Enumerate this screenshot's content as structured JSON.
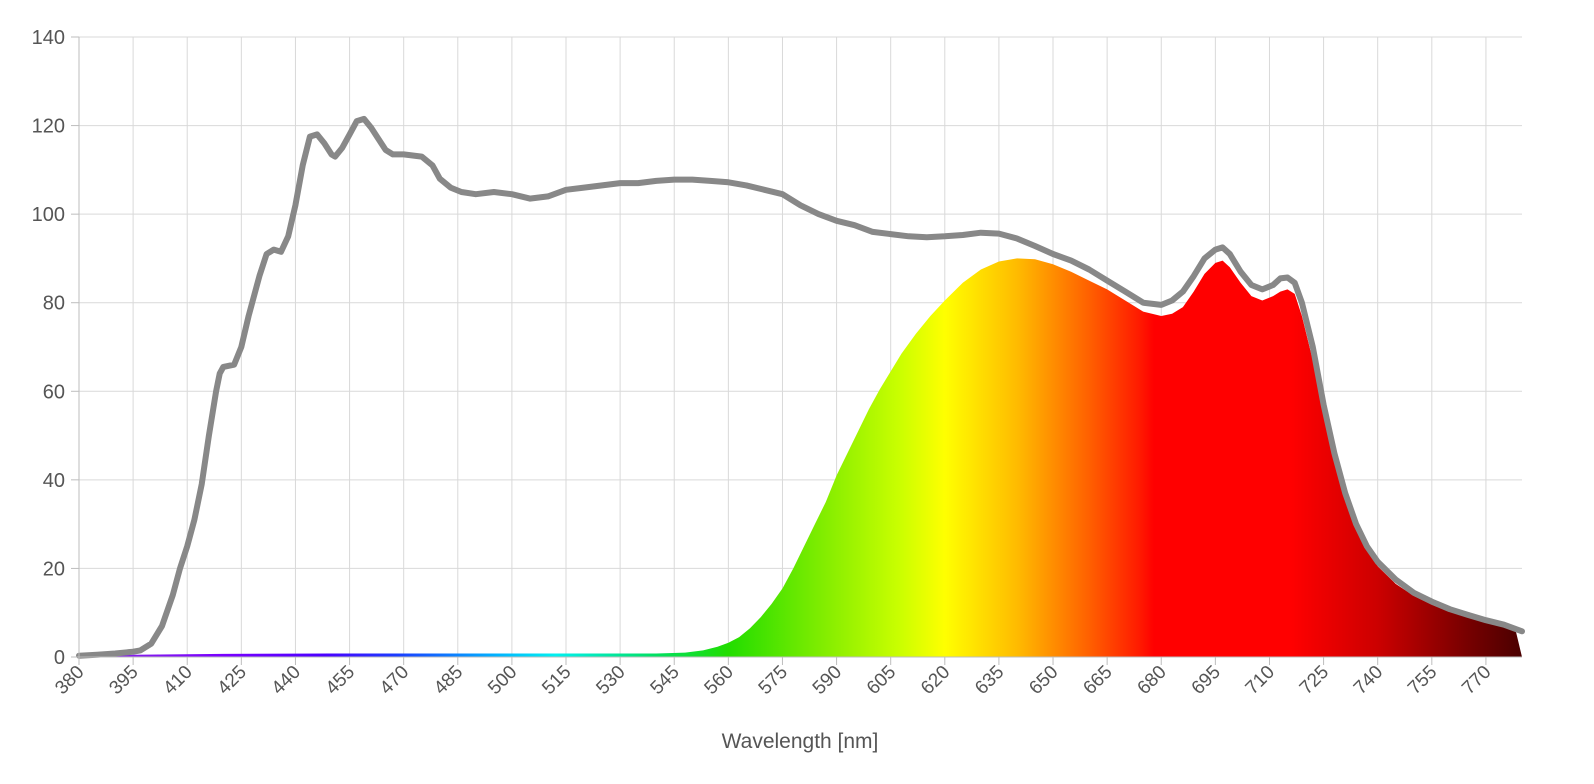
{
  "chart_data": {
    "type": "area",
    "xlabel": "Wavelength [nm]",
    "ylabel": "",
    "xlim": [
      380,
      780
    ],
    "ylim": [
      0,
      140
    ],
    "grid": true,
    "legend": "none",
    "x_ticks": [
      380,
      395,
      410,
      425,
      440,
      455,
      470,
      485,
      500,
      515,
      530,
      545,
      560,
      575,
      590,
      605,
      620,
      635,
      650,
      665,
      680,
      695,
      710,
      725,
      740,
      755,
      770
    ],
    "y_ticks": [
      0,
      20,
      40,
      60,
      80,
      100,
      120,
      140
    ],
    "series": [
      {
        "style": "line",
        "color": "#888888",
        "points": [
          [
            380,
            0.3
          ],
          [
            385,
            0.5
          ],
          [
            390,
            0.8
          ],
          [
            395,
            1.2
          ],
          [
            397,
            1.5
          ],
          [
            400,
            3
          ],
          [
            403,
            7
          ],
          [
            406,
            14
          ],
          [
            408,
            20
          ],
          [
            410,
            25
          ],
          [
            412,
            31
          ],
          [
            414,
            39
          ],
          [
            416,
            50
          ],
          [
            418,
            60
          ],
          [
            419,
            64
          ],
          [
            420,
            65.5
          ],
          [
            423,
            66
          ],
          [
            425,
            70
          ],
          [
            427,
            77
          ],
          [
            430,
            86
          ],
          [
            432,
            91
          ],
          [
            434,
            92
          ],
          [
            436,
            91.5
          ],
          [
            438,
            95
          ],
          [
            440,
            102
          ],
          [
            442,
            111
          ],
          [
            444,
            117.5
          ],
          [
            446,
            118
          ],
          [
            448,
            116
          ],
          [
            450,
            113.5
          ],
          [
            451,
            113
          ],
          [
            453,
            115
          ],
          [
            455,
            118
          ],
          [
            457,
            121
          ],
          [
            459,
            121.5
          ],
          [
            461,
            119.5
          ],
          [
            463,
            117
          ],
          [
            465,
            114.5
          ],
          [
            467,
            113.5
          ],
          [
            470,
            113.5
          ],
          [
            475,
            113
          ],
          [
            478,
            111
          ],
          [
            480,
            108
          ],
          [
            483,
            106
          ],
          [
            486,
            105
          ],
          [
            490,
            104.5
          ],
          [
            495,
            105
          ],
          [
            500,
            104.5
          ],
          [
            505,
            103.5
          ],
          [
            510,
            104
          ],
          [
            515,
            105.5
          ],
          [
            520,
            106
          ],
          [
            525,
            106.5
          ],
          [
            530,
            107
          ],
          [
            535,
            107
          ],
          [
            540,
            107.5
          ],
          [
            545,
            107.8
          ],
          [
            550,
            107.8
          ],
          [
            555,
            107.5
          ],
          [
            560,
            107.2
          ],
          [
            565,
            106.5
          ],
          [
            570,
            105.5
          ],
          [
            575,
            104.5
          ],
          [
            580,
            102
          ],
          [
            585,
            100
          ],
          [
            590,
            98.5
          ],
          [
            595,
            97.5
          ],
          [
            600,
            96
          ],
          [
            605,
            95.5
          ],
          [
            610,
            95
          ],
          [
            615,
            94.8
          ],
          [
            620,
            95
          ],
          [
            625,
            95.3
          ],
          [
            630,
            95.8
          ],
          [
            635,
            95.6
          ],
          [
            640,
            94.5
          ],
          [
            645,
            92.8
          ],
          [
            650,
            91
          ],
          [
            655,
            89.5
          ],
          [
            660,
            87.5
          ],
          [
            665,
            85
          ],
          [
            670,
            82.5
          ],
          [
            675,
            80
          ],
          [
            680,
            79.5
          ],
          [
            683,
            80.5
          ],
          [
            686,
            82.5
          ],
          [
            689,
            86
          ],
          [
            692,
            90
          ],
          [
            695,
            92
          ],
          [
            697,
            92.5
          ],
          [
            699,
            91
          ],
          [
            702,
            87
          ],
          [
            705,
            84
          ],
          [
            708,
            83
          ],
          [
            711,
            84
          ],
          [
            713,
            85.5
          ],
          [
            715,
            85.7
          ],
          [
            717,
            84.5
          ],
          [
            719,
            80
          ],
          [
            722,
            70
          ],
          [
            725,
            57
          ],
          [
            728,
            46
          ],
          [
            731,
            37
          ],
          [
            734,
            30
          ],
          [
            737,
            25
          ],
          [
            740,
            21.5
          ],
          [
            745,
            17.5
          ],
          [
            750,
            14.5
          ],
          [
            755,
            12.5
          ],
          [
            760,
            10.8
          ],
          [
            765,
            9.5
          ],
          [
            770,
            8.3
          ],
          [
            775,
            7.3
          ],
          [
            780,
            5.8
          ]
        ]
      },
      {
        "style": "filled-area",
        "fill": "visible-spectrum-gradient",
        "points": [
          [
            381,
            0
          ],
          [
            383,
            0.2
          ],
          [
            395,
            0.5
          ],
          [
            420,
            0.7
          ],
          [
            450,
            0.8
          ],
          [
            500,
            0.8
          ],
          [
            540,
            0.8
          ],
          [
            548,
            1
          ],
          [
            553,
            1.5
          ],
          [
            557,
            2.3
          ],
          [
            560,
            3.2
          ],
          [
            563,
            4.5
          ],
          [
            566,
            6.5
          ],
          [
            569,
            9
          ],
          [
            572,
            12
          ],
          [
            575,
            15.5
          ],
          [
            578,
            20
          ],
          [
            581,
            25
          ],
          [
            584,
            30
          ],
          [
            587,
            35
          ],
          [
            590,
            41
          ],
          [
            593,
            46
          ],
          [
            596,
            51
          ],
          [
            599,
            56
          ],
          [
            602,
            60.5
          ],
          [
            605,
            64.5
          ],
          [
            608,
            68.5
          ],
          [
            612,
            73
          ],
          [
            616,
            77
          ],
          [
            620,
            80.5
          ],
          [
            625,
            84.5
          ],
          [
            630,
            87.5
          ],
          [
            635,
            89.3
          ],
          [
            640,
            90
          ],
          [
            645,
            89.8
          ],
          [
            650,
            88.7
          ],
          [
            655,
            87
          ],
          [
            660,
            85
          ],
          [
            665,
            83
          ],
          [
            670,
            80.5
          ],
          [
            675,
            78
          ],
          [
            680,
            77
          ],
          [
            683,
            77.5
          ],
          [
            686,
            79
          ],
          [
            689,
            82.5
          ],
          [
            692,
            86.5
          ],
          [
            695,
            89
          ],
          [
            697,
            89.5
          ],
          [
            699,
            88
          ],
          [
            702,
            84.5
          ],
          [
            705,
            81.5
          ],
          [
            708,
            80.5
          ],
          [
            711,
            81.5
          ],
          [
            713,
            82.5
          ],
          [
            715,
            83
          ],
          [
            717,
            82
          ],
          [
            719,
            77
          ],
          [
            722,
            67
          ],
          [
            725,
            55
          ],
          [
            728,
            45
          ],
          [
            731,
            36
          ],
          [
            734,
            29
          ],
          [
            737,
            24
          ],
          [
            740,
            20.5
          ],
          [
            745,
            16.5
          ],
          [
            750,
            13.8
          ],
          [
            755,
            11.8
          ],
          [
            760,
            10.2
          ],
          [
            765,
            9
          ],
          [
            770,
            8
          ],
          [
            775,
            7.2
          ],
          [
            778,
            6.8
          ],
          [
            780,
            0
          ]
        ]
      }
    ]
  }
}
